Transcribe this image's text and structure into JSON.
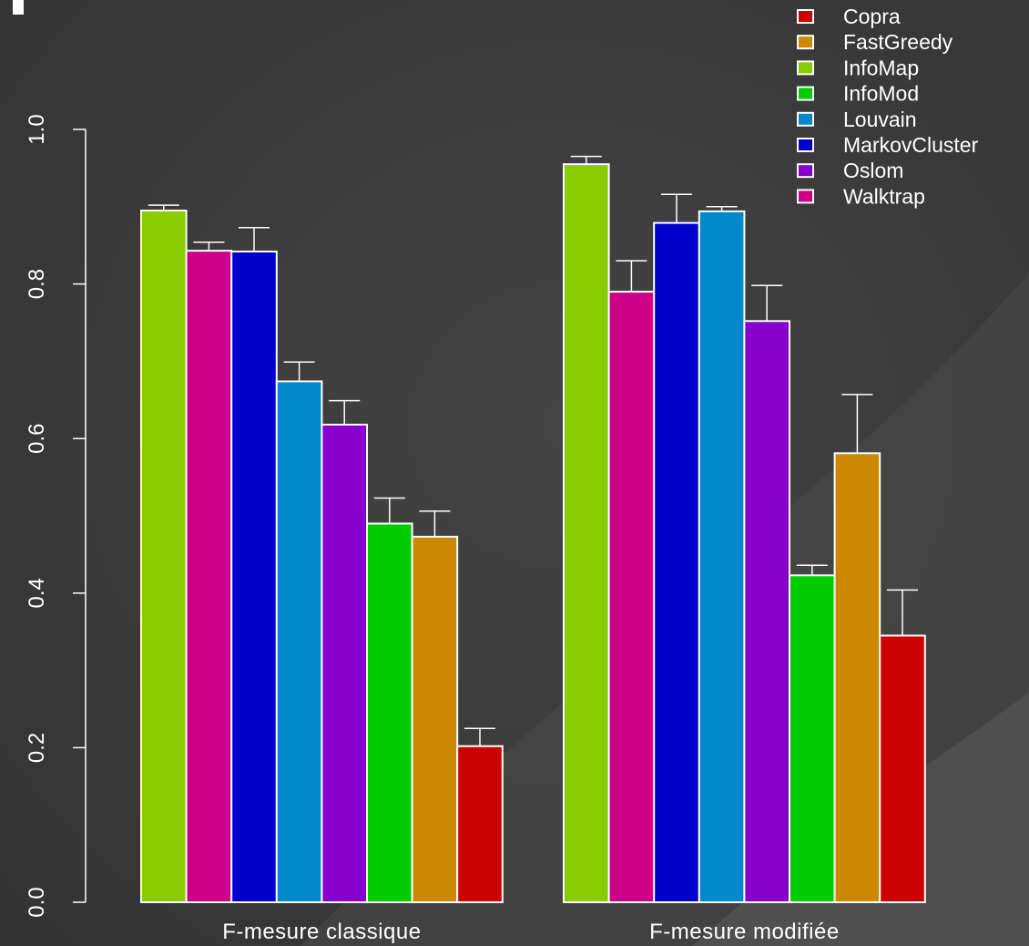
{
  "chart_data": {
    "type": "bar",
    "categories": [
      "F-mesure classique",
      "F-mesure modifiée"
    ],
    "ylim": [
      0,
      1.0
    ],
    "yticks": [
      "0.0",
      "0.2",
      "0.4",
      "0.6",
      "0.8",
      "1.0"
    ],
    "ytick_values": [
      0.0,
      0.2,
      0.4,
      0.6,
      0.8,
      1.0
    ],
    "grid": false,
    "legend_position": "top-right",
    "legend": [
      {
        "name": "Copra",
        "color": "#cc0000"
      },
      {
        "name": "FastGreedy",
        "color": "#cc8800"
      },
      {
        "name": "InfoMap",
        "color": "#88cc00"
      },
      {
        "name": "InfoMod",
        "color": "#00cc00"
      },
      {
        "name": "Louvain",
        "color": "#0088cc"
      },
      {
        "name": "MarkovCluster",
        "color": "#0000cc"
      },
      {
        "name": "Oslom",
        "color": "#8800cc"
      },
      {
        "name": "Walktrap",
        "color": "#cc0088"
      }
    ],
    "groups": [
      {
        "category": "F-mesure classique",
        "bars": [
          {
            "series": "InfoMap",
            "value": 0.895,
            "error": 0.007
          },
          {
            "series": "Walktrap",
            "value": 0.843,
            "error": 0.011
          },
          {
            "series": "MarkovCluster",
            "value": 0.842,
            "error": 0.031
          },
          {
            "series": "Louvain",
            "value": 0.674,
            "error": 0.025
          },
          {
            "series": "Oslom",
            "value": 0.618,
            "error": 0.031
          },
          {
            "series": "InfoMod",
            "value": 0.49,
            "error": 0.033
          },
          {
            "series": "FastGreedy",
            "value": 0.473,
            "error": 0.033
          },
          {
            "series": "Copra",
            "value": 0.202,
            "error": 0.023
          }
        ]
      },
      {
        "category": "F-mesure modifiée",
        "bars": [
          {
            "series": "InfoMap",
            "value": 0.955,
            "error": 0.01
          },
          {
            "series": "Walktrap",
            "value": 0.79,
            "error": 0.04
          },
          {
            "series": "MarkovCluster",
            "value": 0.879,
            "error": 0.037
          },
          {
            "series": "Louvain",
            "value": 0.894,
            "error": 0.006
          },
          {
            "series": "Oslom",
            "value": 0.752,
            "error": 0.046
          },
          {
            "series": "InfoMod",
            "value": 0.423,
            "error": 0.013
          },
          {
            "series": "FastGreedy",
            "value": 0.581,
            "error": 0.076
          },
          {
            "series": "Copra",
            "value": 0.345,
            "error": 0.059
          }
        ]
      }
    ]
  }
}
